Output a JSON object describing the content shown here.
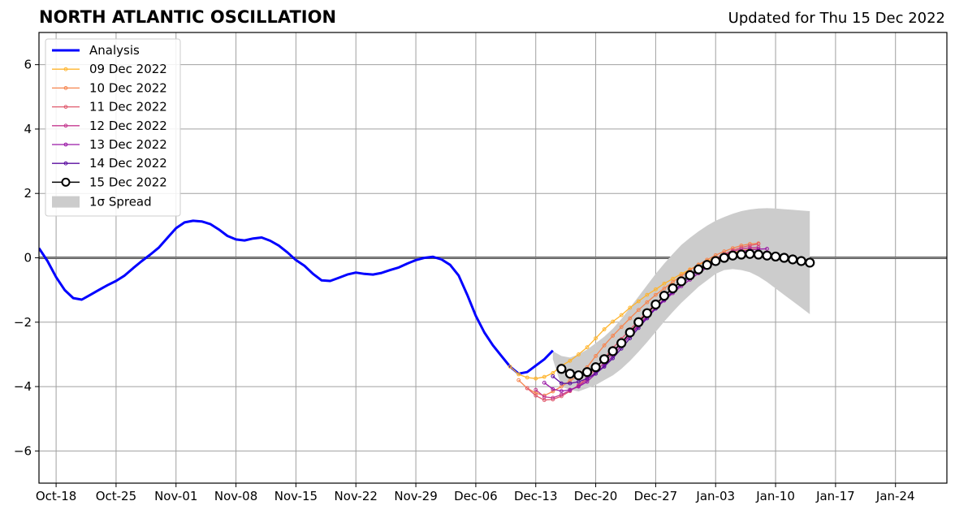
{
  "title": "NORTH ATLANTIC OSCILLATION",
  "updated": "Updated for Thu 15 Dec 2022",
  "chart_data": {
    "type": "line",
    "x_axis": {
      "start_date": "2022-10-16",
      "end_date": "2023-01-30",
      "ticks": [
        {
          "date": "2022-10-18",
          "label": "Oct-18"
        },
        {
          "date": "2022-10-25",
          "label": "Oct-25"
        },
        {
          "date": "2022-11-01",
          "label": "Nov-01"
        },
        {
          "date": "2022-11-08",
          "label": "Nov-08"
        },
        {
          "date": "2022-11-15",
          "label": "Nov-15"
        },
        {
          "date": "2022-11-22",
          "label": "Nov-22"
        },
        {
          "date": "2022-11-29",
          "label": "Nov-29"
        },
        {
          "date": "2022-12-06",
          "label": "Dec-06"
        },
        {
          "date": "2022-12-13",
          "label": "Dec-13"
        },
        {
          "date": "2022-12-20",
          "label": "Dec-20"
        },
        {
          "date": "2022-12-27",
          "label": "Dec-27"
        },
        {
          "date": "2023-01-03",
          "label": "Jan-03"
        },
        {
          "date": "2023-01-10",
          "label": "Jan-10"
        },
        {
          "date": "2023-01-17",
          "label": "Jan-17"
        },
        {
          "date": "2023-01-24",
          "label": "Jan-24"
        }
      ]
    },
    "y_axis": {
      "ylim": [
        -7,
        7
      ],
      "ticks": [
        {
          "value": 6,
          "label": "6"
        },
        {
          "value": 4,
          "label": "4"
        },
        {
          "value": 2,
          "label": "2"
        },
        {
          "value": 0,
          "label": "0"
        },
        {
          "value": -2,
          "label": "−2"
        },
        {
          "value": -4,
          "label": "−4"
        },
        {
          "value": -6,
          "label": "−6"
        }
      ]
    },
    "grid": true,
    "legend_position": "top-left",
    "analysis": {
      "name": "Analysis",
      "color": "#0000ff",
      "points": [
        [
          "2022-10-16",
          0.3
        ],
        [
          "2022-10-17",
          -0.1
        ],
        [
          "2022-10-18",
          -0.6
        ],
        [
          "2022-10-19",
          -1.0
        ],
        [
          "2022-10-20",
          -1.25
        ],
        [
          "2022-10-21",
          -1.3
        ],
        [
          "2022-10-22",
          -1.15
        ],
        [
          "2022-10-23",
          -1.0
        ],
        [
          "2022-10-24",
          -0.85
        ],
        [
          "2022-10-25",
          -0.72
        ],
        [
          "2022-10-26",
          -0.55
        ],
        [
          "2022-10-27",
          -0.32
        ],
        [
          "2022-10-28",
          -0.1
        ],
        [
          "2022-10-29",
          0.1
        ],
        [
          "2022-10-30",
          0.32
        ],
        [
          "2022-10-31",
          0.62
        ],
        [
          "2022-11-01",
          0.92
        ],
        [
          "2022-11-02",
          1.1
        ],
        [
          "2022-11-03",
          1.15
        ],
        [
          "2022-11-04",
          1.13
        ],
        [
          "2022-11-05",
          1.05
        ],
        [
          "2022-11-06",
          0.88
        ],
        [
          "2022-11-07",
          0.68
        ],
        [
          "2022-11-08",
          0.57
        ],
        [
          "2022-11-09",
          0.54
        ],
        [
          "2022-11-10",
          0.6
        ],
        [
          "2022-11-11",
          0.63
        ],
        [
          "2022-11-12",
          0.53
        ],
        [
          "2022-11-13",
          0.38
        ],
        [
          "2022-11-14",
          0.17
        ],
        [
          "2022-11-15",
          -0.07
        ],
        [
          "2022-11-16",
          -0.25
        ],
        [
          "2022-11-17",
          -0.5
        ],
        [
          "2022-11-18",
          -0.7
        ],
        [
          "2022-11-19",
          -0.72
        ],
        [
          "2022-11-20",
          -0.62
        ],
        [
          "2022-11-21",
          -0.52
        ],
        [
          "2022-11-22",
          -0.46
        ],
        [
          "2022-11-23",
          -0.5
        ],
        [
          "2022-11-24",
          -0.52
        ],
        [
          "2022-11-25",
          -0.47
        ],
        [
          "2022-11-26",
          -0.38
        ],
        [
          "2022-11-27",
          -0.3
        ],
        [
          "2022-11-28",
          -0.18
        ],
        [
          "2022-11-29",
          -0.07
        ],
        [
          "2022-11-30",
          0.0
        ],
        [
          "2022-12-01",
          0.03
        ],
        [
          "2022-12-02",
          -0.05
        ],
        [
          "2022-12-03",
          -0.22
        ],
        [
          "2022-12-04",
          -0.55
        ],
        [
          "2022-12-05",
          -1.15
        ],
        [
          "2022-12-06",
          -1.8
        ],
        [
          "2022-12-07",
          -2.32
        ],
        [
          "2022-12-08",
          -2.72
        ],
        [
          "2022-12-09",
          -3.05
        ],
        [
          "2022-12-10",
          -3.38
        ],
        [
          "2022-12-11",
          -3.6
        ],
        [
          "2022-12-12",
          -3.55
        ],
        [
          "2022-12-13",
          -3.35
        ],
        [
          "2022-12-14",
          -3.15
        ],
        [
          "2022-12-15",
          -2.88
        ]
      ]
    },
    "series": [
      {
        "name": "09 Dec 2022",
        "color": "#ffb42c",
        "start": "2022-12-10",
        "values": [
          -3.38,
          -3.62,
          -3.72,
          -3.75,
          -3.7,
          -3.58,
          -3.35,
          -3.2,
          -3.0,
          -2.78,
          -2.5,
          -2.22,
          -1.98,
          -1.78,
          -1.55,
          -1.35,
          -1.15,
          -0.98,
          -0.8,
          -0.65,
          -0.5,
          -0.36,
          -0.22,
          -0.1,
          0.0,
          0.08,
          0.16,
          0.22,
          0.26,
          0.28
        ]
      },
      {
        "name": "10 Dec 2022",
        "color": "#f6854f",
        "start": "2022-12-11",
        "values": [
          -3.8,
          -4.05,
          -4.2,
          -4.28,
          -4.15,
          -4.0,
          -3.82,
          -3.65,
          -3.4,
          -3.05,
          -2.72,
          -2.42,
          -2.15,
          -1.88,
          -1.62,
          -1.38,
          -1.15,
          -0.95,
          -0.75,
          -0.56,
          -0.38,
          -0.21,
          -0.06,
          0.08,
          0.2,
          0.3,
          0.38,
          0.43,
          0.45
        ]
      },
      {
        "name": "11 Dec 2022",
        "color": "#e05a6e",
        "start": "2022-12-12",
        "values": [
          -4.05,
          -4.28,
          -4.42,
          -4.4,
          -4.3,
          -4.14,
          -3.95,
          -3.72,
          -3.45,
          -3.12,
          -2.8,
          -2.52,
          -2.23,
          -1.95,
          -1.68,
          -1.42,
          -1.18,
          -0.95,
          -0.74,
          -0.53,
          -0.34,
          -0.17,
          -0.02,
          0.12,
          0.23,
          0.32,
          0.38,
          0.43
        ]
      },
      {
        "name": "12 Dec 2022",
        "color": "#c4398f",
        "start": "2022-12-13",
        "values": [
          -4.1,
          -4.32,
          -4.35,
          -4.25,
          -4.12,
          -3.98,
          -3.78,
          -3.55,
          -3.25,
          -2.95,
          -2.65,
          -2.37,
          -2.08,
          -1.8,
          -1.54,
          -1.28,
          -1.04,
          -0.82,
          -0.6,
          -0.4,
          -0.22,
          -0.06,
          0.08,
          0.2,
          0.27,
          0.31,
          0.33
        ]
      },
      {
        "name": "13 Dec 2022",
        "color": "#9a18a6",
        "start": "2022-12-14",
        "values": [
          -3.88,
          -4.08,
          -4.14,
          -4.1,
          -4.0,
          -3.85,
          -3.6,
          -3.35,
          -3.05,
          -2.72,
          -2.42,
          -2.12,
          -1.84,
          -1.58,
          -1.33,
          -1.1,
          -0.88,
          -0.68,
          -0.48,
          -0.3,
          -0.14,
          0.0,
          0.12,
          0.2,
          0.25,
          0.27,
          0.28
        ]
      },
      {
        "name": "14 Dec 2022",
        "color": "#5a0b9f",
        "start": "2022-12-15",
        "values": [
          -3.68,
          -3.9,
          -3.9,
          -3.85,
          -3.75,
          -3.6,
          -3.38,
          -3.12,
          -2.82,
          -2.5,
          -2.18,
          -1.88,
          -1.58,
          -1.3,
          -1.06,
          -0.82,
          -0.6,
          -0.42,
          -0.25,
          -0.1,
          0.02,
          0.1,
          0.15,
          0.16,
          0.14,
          0.1
        ]
      },
      {
        "name": "15 Dec 2022",
        "color": "#000000",
        "start": "2022-12-16",
        "values": [
          -3.45,
          -3.6,
          -3.65,
          -3.55,
          -3.4,
          -3.15,
          -2.9,
          -2.65,
          -2.32,
          -2.0,
          -1.72,
          -1.45,
          -1.18,
          -0.95,
          -0.73,
          -0.54,
          -0.36,
          -0.22,
          -0.1,
          0.0,
          0.07,
          0.1,
          0.12,
          0.1,
          0.07,
          0.04,
          0.0,
          -0.05,
          -0.1,
          -0.15
        ]
      }
    ],
    "spread": {
      "name": "1σ Spread",
      "color": "#cccccc",
      "start": "2022-12-15",
      "upper": [
        -2.9,
        -3.05,
        -3.1,
        -3.0,
        -2.85,
        -2.65,
        -2.45,
        -2.2,
        -1.9,
        -1.55,
        -1.2,
        -0.85,
        -0.5,
        -0.18,
        0.12,
        0.4,
        0.62,
        0.82,
        1.0,
        1.15,
        1.27,
        1.37,
        1.45,
        1.5,
        1.53,
        1.54,
        1.53,
        1.51,
        1.49,
        1.47,
        1.45
      ],
      "lower": [
        -3.15,
        -4.0,
        -4.1,
        -4.15,
        -4.05,
        -3.95,
        -3.8,
        -3.65,
        -3.45,
        -3.2,
        -2.92,
        -2.62,
        -2.3,
        -1.98,
        -1.68,
        -1.4,
        -1.15,
        -0.9,
        -0.7,
        -0.5,
        -0.38,
        -0.35,
        -0.38,
        -0.45,
        -0.58,
        -0.75,
        -0.95,
        -1.15,
        -1.35,
        -1.55,
        -1.75
      ]
    }
  }
}
